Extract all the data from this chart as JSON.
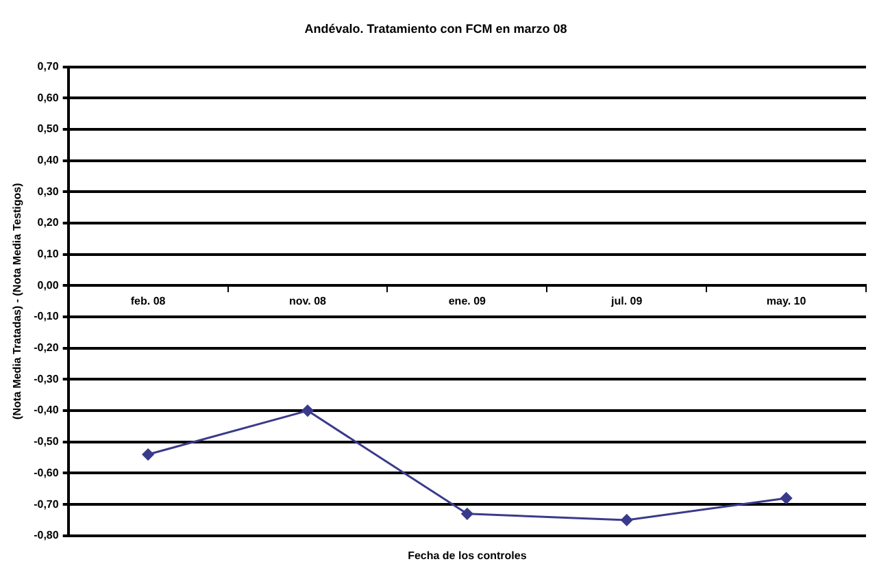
{
  "chart_data": {
    "type": "line",
    "title": "Andévalo. Tratamiento con FCM en marzo 08",
    "xlabel": "Fecha de los controles",
    "ylabel": "(Nota Media Tratadas) - (Nota Media Testigos)",
    "categories": [
      "feb. 08",
      "nov. 08",
      "ene. 09",
      "jul. 09",
      "may. 10"
    ],
    "series": [
      {
        "color": "#3a3a8c",
        "values": [
          -0.54,
          -0.4,
          -0.73,
          -0.75,
          -0.68
        ]
      }
    ],
    "ylim": [
      -0.8,
      0.7
    ],
    "yticks": [
      {
        "value": -0.8,
        "label": "-0,80"
      },
      {
        "value": -0.7,
        "label": "-0,70"
      },
      {
        "value": -0.6,
        "label": "-0,60"
      },
      {
        "value": -0.5,
        "label": "-0,50"
      },
      {
        "value": -0.4,
        "label": "-0,40"
      },
      {
        "value": -0.3,
        "label": "-0,30"
      },
      {
        "value": -0.2,
        "label": "-0,20"
      },
      {
        "value": -0.1,
        "label": "-0,10"
      },
      {
        "value": 0,
        "label": "0,00"
      },
      {
        "value": 0.1,
        "label": "0,10"
      },
      {
        "value": 0.2,
        "label": "0,20"
      },
      {
        "value": 0.3,
        "label": "0,30"
      },
      {
        "value": 0.4,
        "label": "0,40"
      },
      {
        "value": 0.5,
        "label": "0,50"
      },
      {
        "value": 0.6,
        "label": "0,60"
      },
      {
        "value": 0.7,
        "label": "0,70"
      }
    ],
    "grid": "y",
    "legend": false,
    "marker": "diamond",
    "line_style": "solid"
  }
}
